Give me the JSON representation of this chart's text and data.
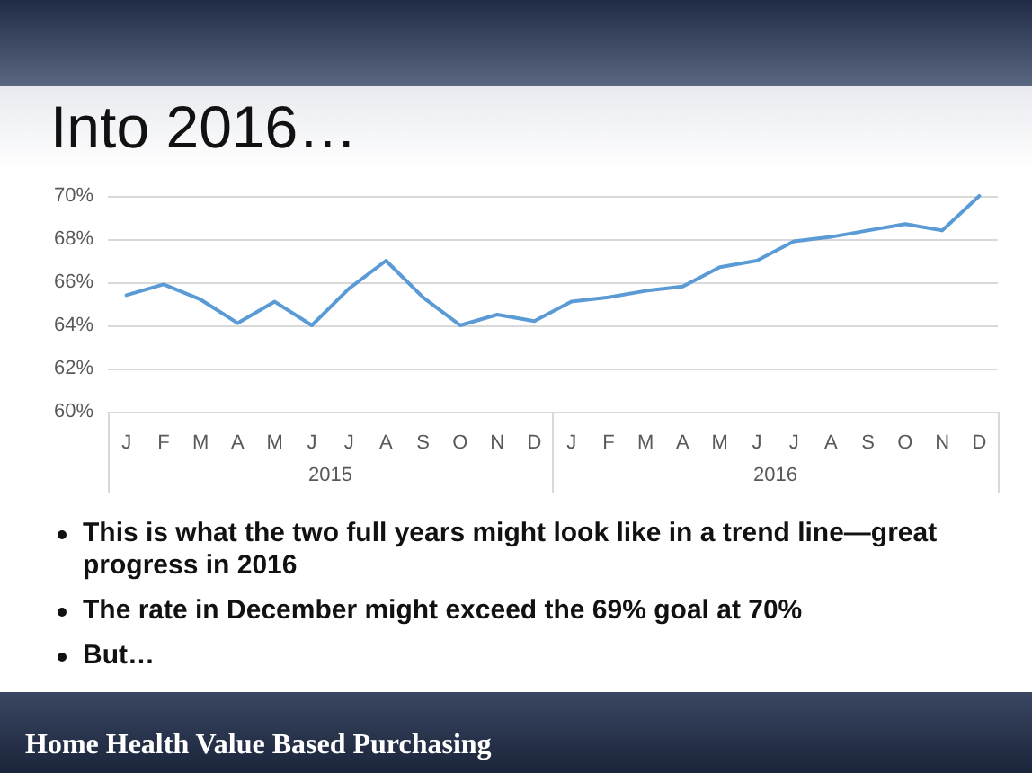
{
  "chart_data": {
    "type": "line",
    "title": "Into 2016…",
    "categories": [
      "J",
      "F",
      "M",
      "A",
      "M",
      "J",
      "J",
      "A",
      "S",
      "O",
      "N",
      "D",
      "J",
      "F",
      "M",
      "A",
      "M",
      "J",
      "J",
      "A",
      "S",
      "O",
      "N",
      "D"
    ],
    "series": [
      {
        "color": "#5b9bd5",
        "values": [
          65.4,
          65.9,
          65.2,
          64.1,
          65.1,
          64.0,
          65.7,
          67.0,
          65.3,
          64.0,
          64.5,
          64.2,
          65.1,
          65.3,
          65.6,
          65.8,
          66.7,
          67.0,
          67.9,
          68.1,
          68.4,
          68.7,
          68.4,
          70.0
        ]
      }
    ],
    "ylim": [
      60,
      70
    ],
    "yticks": [
      {
        "value": 60,
        "label": "60%"
      },
      {
        "value": 62,
        "label": "62%"
      },
      {
        "value": 64,
        "label": "64%"
      },
      {
        "value": 66,
        "label": "66%"
      },
      {
        "value": 68,
        "label": "68%"
      },
      {
        "value": 70,
        "label": "70%"
      }
    ],
    "grid": "y",
    "marker": "none",
    "line_style": "solid",
    "annotations": [
      "2015",
      "2016",
      "This is what the two full years might look like in a trend line—great progress in 2016",
      "The rate in December might exceed the 69% goal at 70%",
      "But…",
      "Home Health Value Based Purchasing"
    ]
  }
}
